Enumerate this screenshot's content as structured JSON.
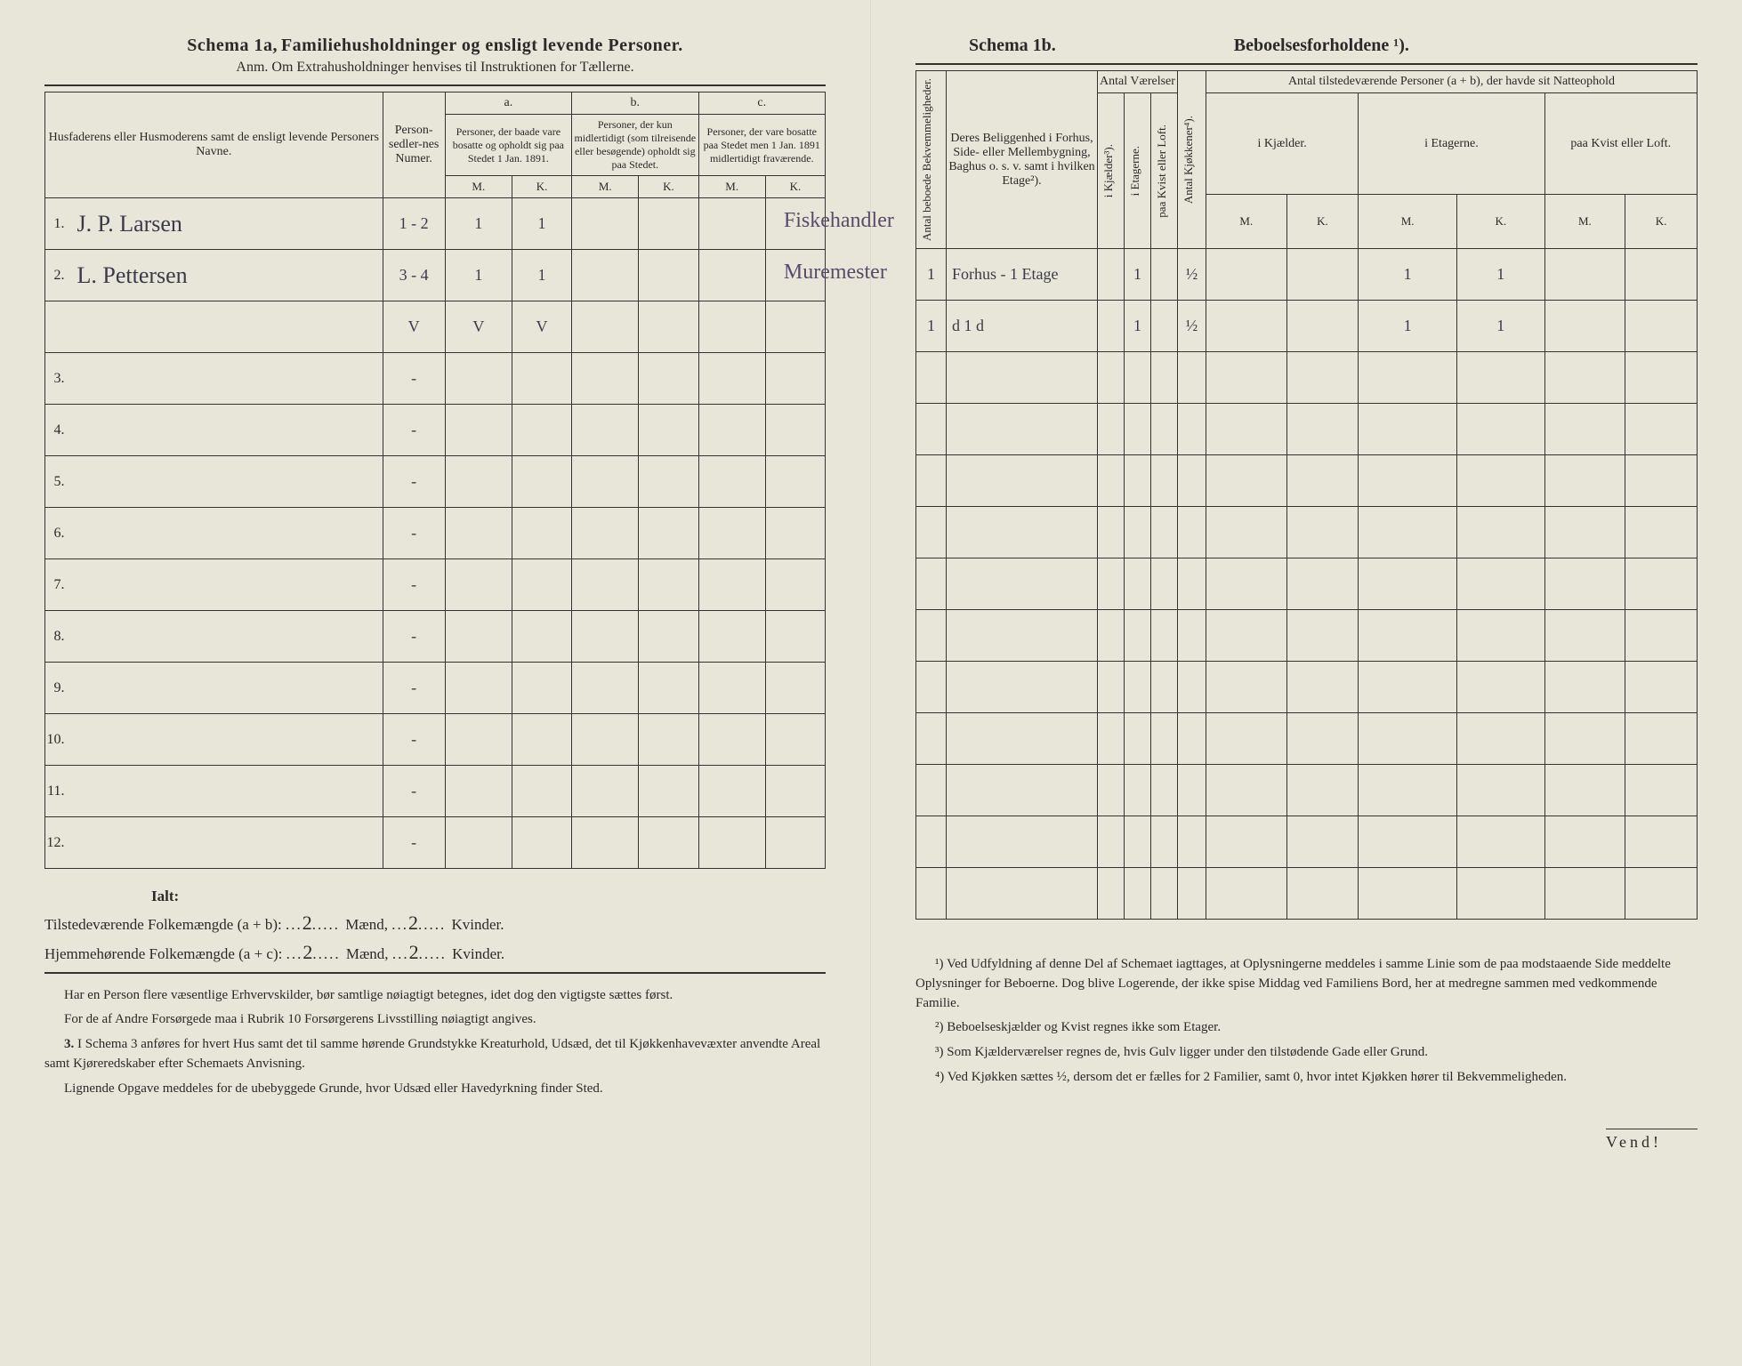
{
  "left": {
    "title_prefix": "Schema 1a,",
    "title_main": "Familiehusholdninger og ensligt levende Personer.",
    "anm": "Anm. Om Extrahusholdninger henvises til Instruktionen for Tællerne.",
    "col_name_header": "Husfaderens eller Husmoderens samt de ensligt levende Personers Navne.",
    "col_personsedler": "Person-sedler-nes Numer.",
    "col_a_label": "a.",
    "col_a_text": "Personer, der baade vare bosatte og opholdt sig paa Stedet 1 Jan. 1891.",
    "col_b_label": "b.",
    "col_b_text": "Personer, der kun midlertidigt (som tilreisende eller besøgende) opholdt sig paa Stedet.",
    "col_c_label": "c.",
    "col_c_text": "Personer, der vare bosatte paa Stedet men 1 Jan. 1891 midlertidigt fraværende.",
    "M": "M.",
    "K": "K.",
    "rows": [
      {
        "n": "1.",
        "name": "J. P. Larsen",
        "ps": "1 - 2",
        "aM": "1",
        "aK": "1",
        "occ": "Fiskehandler"
      },
      {
        "n": "2.",
        "name": "L. Pettersen",
        "ps": "3 - 4",
        "aM": "1",
        "aK": "1",
        "occ": "Muremester"
      },
      {
        "n": "",
        "name": "",
        "ps": "V",
        "aM": "V",
        "aK": "V",
        "occ": ""
      },
      {
        "n": "3.",
        "name": "",
        "ps": "-",
        "aM": "",
        "aK": "",
        "occ": ""
      },
      {
        "n": "4.",
        "name": "",
        "ps": "-",
        "aM": "",
        "aK": "",
        "occ": ""
      },
      {
        "n": "5.",
        "name": "",
        "ps": "-",
        "aM": "",
        "aK": "",
        "occ": ""
      },
      {
        "n": "6.",
        "name": "",
        "ps": "-",
        "aM": "",
        "aK": "",
        "occ": ""
      },
      {
        "n": "7.",
        "name": "",
        "ps": "-",
        "aM": "",
        "aK": "",
        "occ": ""
      },
      {
        "n": "8.",
        "name": "",
        "ps": "-",
        "aM": "",
        "aK": "",
        "occ": ""
      },
      {
        "n": "9.",
        "name": "",
        "ps": "-",
        "aM": "",
        "aK": "",
        "occ": ""
      },
      {
        "n": "10.",
        "name": "",
        "ps": "-",
        "aM": "",
        "aK": "",
        "occ": ""
      },
      {
        "n": "11.",
        "name": "",
        "ps": "-",
        "aM": "",
        "aK": "",
        "occ": ""
      },
      {
        "n": "12.",
        "name": "",
        "ps": "-",
        "aM": "",
        "aK": "",
        "occ": ""
      }
    ],
    "ialt": "Ialt:",
    "tilstede_label": "Tilstedeværende Folkemængde (a + b):",
    "hjemme_label": "Hjemmehørende Folkemængde (a + c):",
    "maend": "Mænd,",
    "kvinder": "Kvinder.",
    "tilstede_m": "2",
    "tilstede_k": "2",
    "hjemme_m": "2",
    "hjemme_k": "2",
    "note1": "Har en Person flere væsentlige Erhvervskilder, bør samtlige nøiagtigt betegnes, idet dog den vigtigste sættes først.",
    "note2": "For de af Andre Forsørgede maa i Rubrik 10 Forsørgerens Livsstilling nøiagtigt angives.",
    "note3_label": "3.",
    "note3": "I Schema 3 anføres for hvert Hus samt det til samme hørende Grundstykke Kreaturhold, Udsæd, det til Kjøkkenhavevæxter anvendte Areal samt Kjøreredskaber efter Schemaets Anvisning.",
    "note4": "Lignende Opgave meddeles for de ubebyggede Grunde, hvor Udsæd eller Havedyrkning finder Sted."
  },
  "right": {
    "title_prefix": "Schema 1b.",
    "title_main": "Beboelsesforholdene ¹).",
    "col_antal_bekv": "Antal beboede Bekvemmeligheder.",
    "col_beligg": "Deres Beliggenhed i Forhus, Side- eller Mellembygning, Baghus o. s. v. samt i hvilken Etage²).",
    "col_antal_vaer": "Antal Værelser",
    "col_kjaelder": "i Kjælder³).",
    "col_etagerne": "i Etagerne.",
    "col_kvist": "paa Kvist eller Loft.",
    "col_kjokken": "Antal Kjøkkener⁴).",
    "col_tilstede": "Antal tilstedeværende Personer (a + b), der havde sit Natteophold",
    "col_ikjael": "i Kjælder.",
    "col_ietag": "i Etagerne.",
    "col_paakvist": "paa Kvist eller Loft.",
    "M": "M.",
    "K": "K.",
    "rows": [
      {
        "bekv": "1",
        "bel": "Forhus - 1 Etage",
        "kj": "",
        "et": "1",
        "kv": "",
        "kk": "½",
        "ikM": "",
        "ikK": "",
        "ieM": "1",
        "ieK": "1",
        "pkM": "",
        "pkK": ""
      },
      {
        "bekv": "1",
        "bel": "d       1   d",
        "kj": "",
        "et": "1",
        "kv": "",
        "kk": "½",
        "ikM": "",
        "ikK": "",
        "ieM": "1",
        "ieK": "1",
        "pkM": "",
        "pkK": ""
      }
    ],
    "fn1": "¹) Ved Udfyldning af denne Del af Schemaet iagttages, at Oplysningerne meddeles i samme Linie som de paa modstaaende Side meddelte Oplysninger for Beboerne. Dog blive Logerende, der ikke spise Middag ved Familiens Bord, her at medregne sammen med vedkommende Familie.",
    "fn2": "²) Beboelseskjælder og Kvist regnes ikke som Etager.",
    "fn3": "³) Som Kjælderværelser regnes de, hvis Gulv ligger under den tilstødende Gade eller Grund.",
    "fn4": "⁴) Ved Kjøkken sættes ½, dersom det er fælles for 2 Familier, samt 0, hvor intet Kjøkken hører til Bekvemmeligheden.",
    "vend": "Vend!"
  }
}
